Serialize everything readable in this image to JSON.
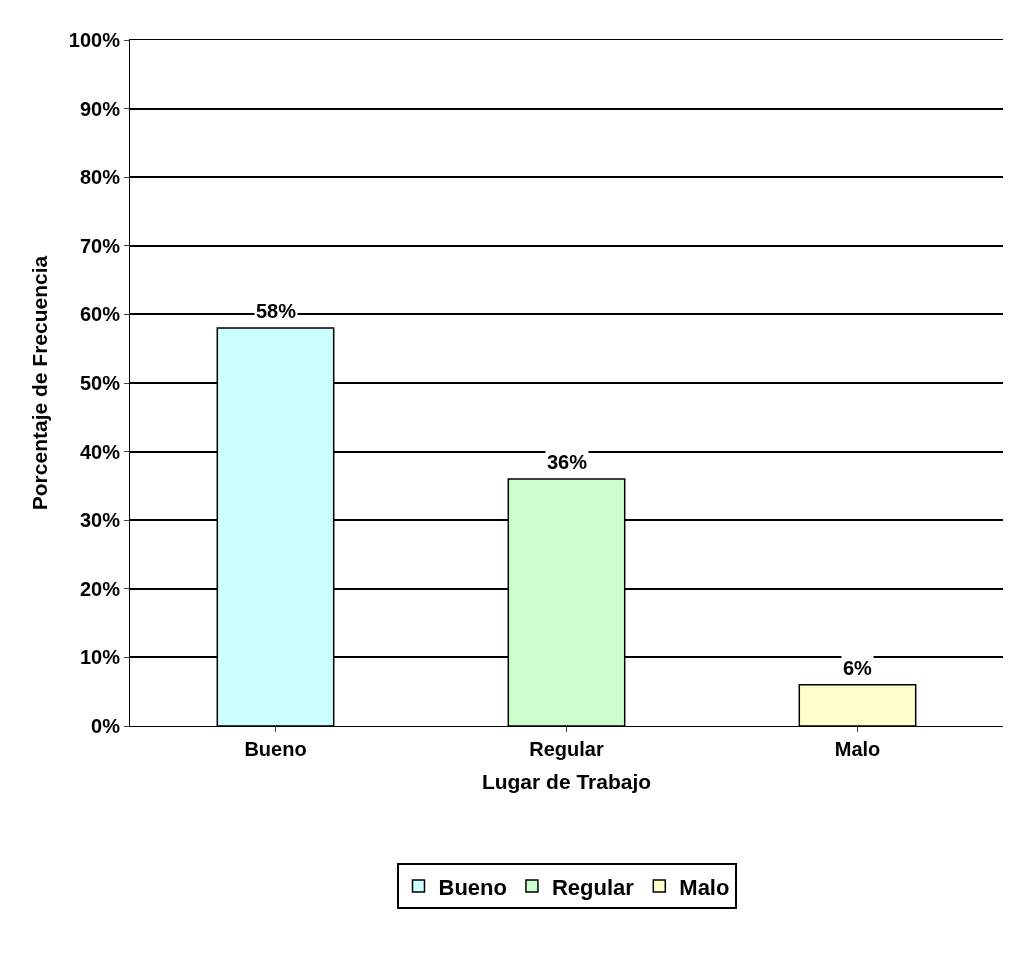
{
  "chart_data": {
    "type": "bar",
    "xlabel": "Lugar de Trabajo",
    "ylabel": "Porcentaje de Frecuencia",
    "categories": [
      "Bueno",
      "Regular",
      "Malo"
    ],
    "series": [
      {
        "name": "Bueno",
        "color": "#ccffff",
        "values": [
          58,
          null,
          null
        ],
        "value_labels": [
          "58%",
          null,
          null
        ]
      },
      {
        "name": "Regular",
        "color": "#ccffcc",
        "values": [
          null,
          36,
          null
        ],
        "value_labels": [
          null,
          "36%",
          null
        ]
      },
      {
        "name": "Malo",
        "color": "#ffffcc",
        "values": [
          null,
          null,
          6
        ],
        "value_labels": [
          null,
          null,
          "6%"
        ]
      }
    ],
    "ylim": [
      0,
      100
    ],
    "yticks": [
      {
        "value": 0,
        "label": "0%"
      },
      {
        "value": 10,
        "label": "10%"
      },
      {
        "value": 20,
        "label": "20%"
      },
      {
        "value": 30,
        "label": "30%"
      },
      {
        "value": 40,
        "label": "40%"
      },
      {
        "value": 50,
        "label": "50%"
      },
      {
        "value": 60,
        "label": "60%"
      },
      {
        "value": 70,
        "label": "70%"
      },
      {
        "value": 80,
        "label": "80%"
      },
      {
        "value": 90,
        "label": "90%"
      },
      {
        "value": 100,
        "label": "100%"
      }
    ],
    "grid": "y",
    "legend": "bottom"
  }
}
